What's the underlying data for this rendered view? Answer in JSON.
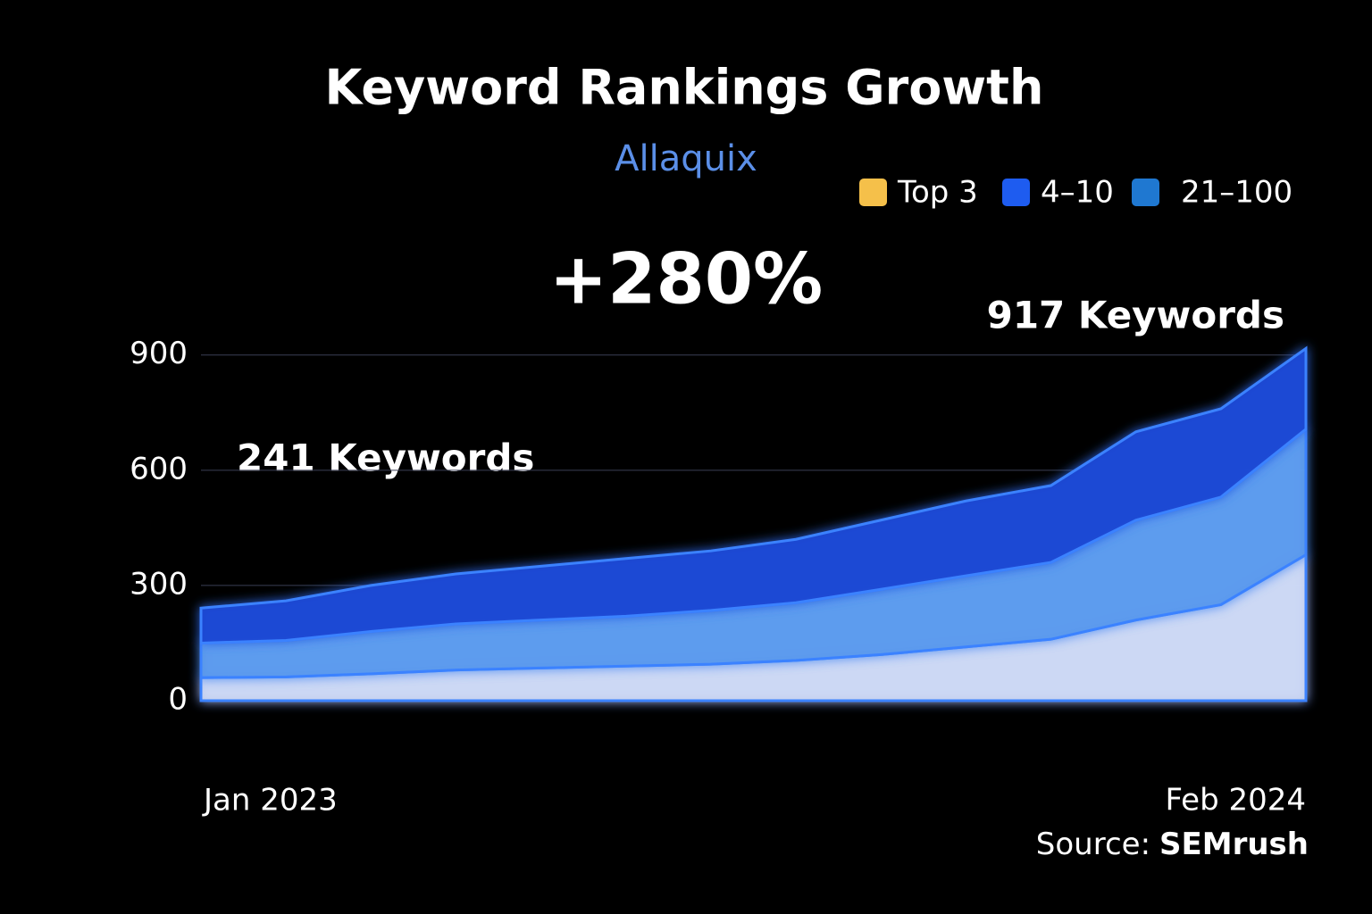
{
  "chart_data": {
    "type": "stacked_area",
    "title": "Keyword Rankings Growth",
    "subtitle": "Allaquix",
    "annotations": {
      "growth": "+280%",
      "start": "241 Keywords",
      "end": "917 Keywords"
    },
    "source_label": "Source:",
    "source": "SEMrush",
    "categories": [
      "Jan 2023",
      null,
      null,
      null,
      null,
      null,
      null,
      null,
      null,
      null,
      null,
      null,
      null,
      "Feb 2024"
    ],
    "series": [
      {
        "name": "Top 3",
        "color": "#f5c04a",
        "fill": "#cdd9f6",
        "values": [
          60,
          62,
          70,
          80,
          85,
          90,
          95,
          105,
          120,
          140,
          160,
          210,
          250,
          380
        ]
      },
      {
        "name": "4–10",
        "color": "#1e5cf0",
        "fill": "#5d9cf0",
        "values": [
          90,
          95,
          110,
          120,
          125,
          130,
          140,
          150,
          170,
          185,
          200,
          260,
          280,
          327
        ]
      },
      {
        "name": "21–100",
        "color": "#1f78d1",
        "fill": "#1d49d6",
        "values": [
          91,
          103,
          120,
          130,
          140,
          150,
          155,
          165,
          180,
          195,
          200,
          230,
          230,
          210
        ]
      }
    ],
    "ylim": [
      0,
      990
    ],
    "yticks": [
      0,
      300,
      600,
      900
    ],
    "grid": true
  }
}
